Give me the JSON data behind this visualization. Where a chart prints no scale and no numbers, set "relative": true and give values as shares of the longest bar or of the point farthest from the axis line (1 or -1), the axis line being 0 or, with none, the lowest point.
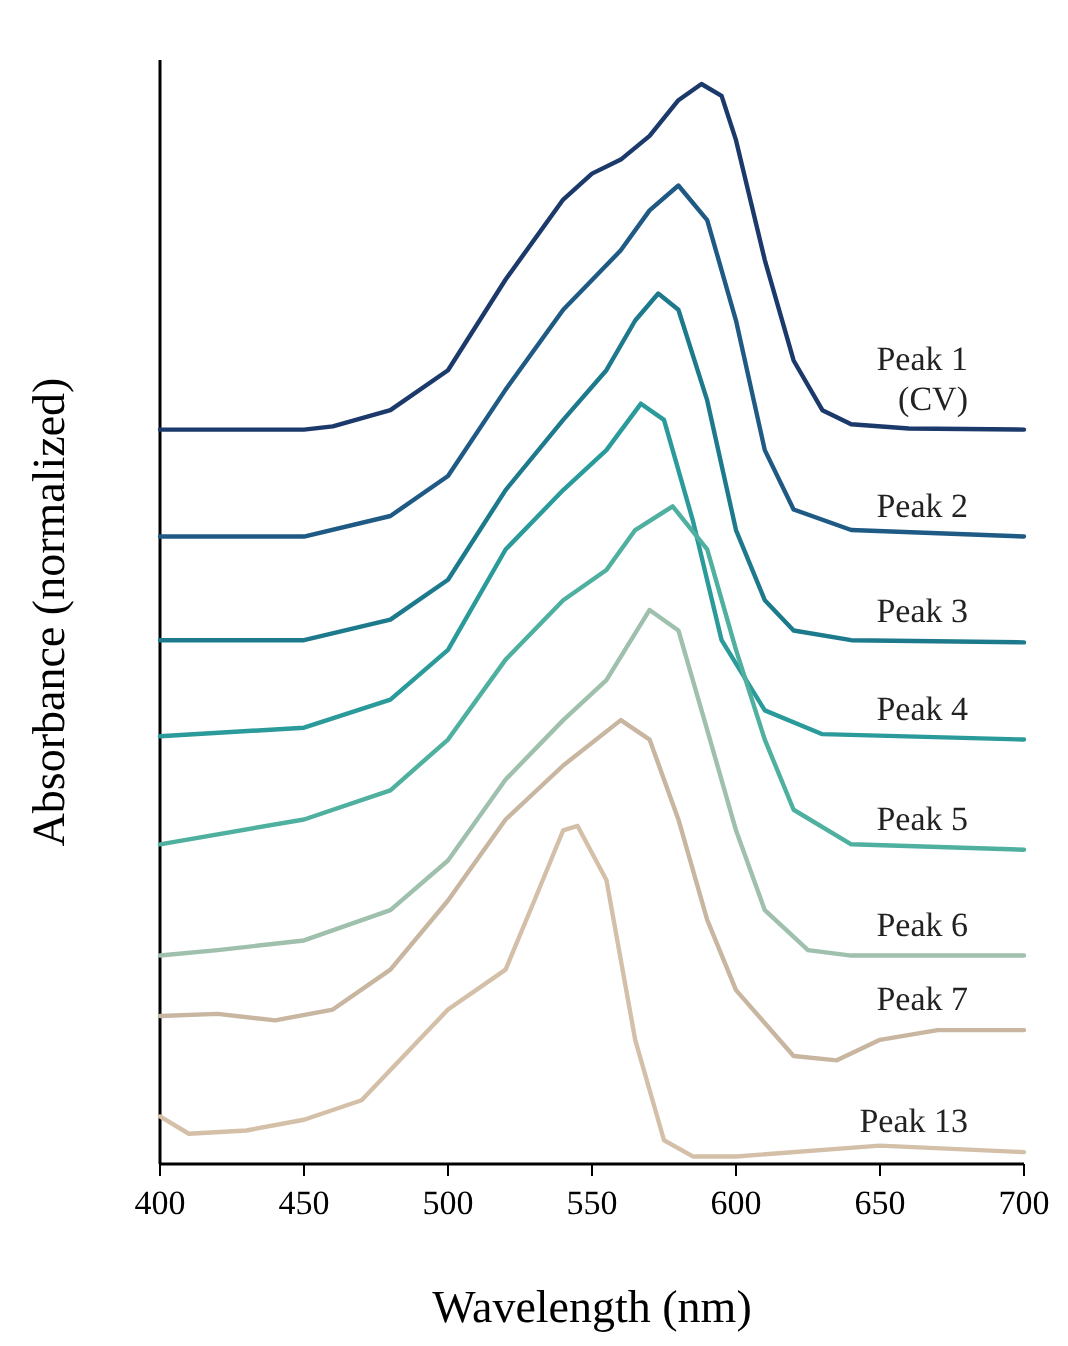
{
  "chart_data": {
    "type": "line",
    "relative": true,
    "xlabel": "Wavelength (nm)",
    "ylabel": "Absorbance (normalized)",
    "xlim": [
      400,
      700
    ],
    "xticks": [
      400,
      450,
      500,
      550,
      600,
      650,
      700
    ],
    "grid": false,
    "marker": "none",
    "line_style": "solid",
    "series": [
      {
        "name": "Peak 1 (CV)",
        "color": "#1b3a6b",
        "x": [
          400,
          450,
          460,
          480,
          500,
          520,
          540,
          550,
          560,
          570,
          580,
          588,
          595,
          600,
          610,
          620,
          630,
          640,
          660,
          700
        ],
        "values": [
          0.68,
          0.68,
          0.683,
          0.698,
          0.735,
          0.819,
          0.893,
          0.917,
          0.93,
          0.952,
          0.985,
          1,
          0.989,
          0.948,
          0.837,
          0.744,
          0.698,
          0.685,
          0.681,
          0.68
        ]
      },
      {
        "name": "Peak 2",
        "color": "#1f5a85",
        "x": [
          400,
          450,
          480,
          500,
          520,
          540,
          560,
          570,
          580,
          590,
          600,
          610,
          620,
          640,
          700
        ],
        "values": [
          0.581,
          0.581,
          0.6,
          0.637,
          0.717,
          0.791,
          0.846,
          0.883,
          0.906,
          0.874,
          0.781,
          0.661,
          0.606,
          0.587,
          0.581
        ]
      },
      {
        "name": "Peak 3",
        "color": "#1d7a8c",
        "x": [
          400,
          450,
          480,
          500,
          520,
          540,
          555,
          565,
          573,
          580,
          590,
          600,
          610,
          620,
          640,
          700
        ],
        "values": [
          0.485,
          0.485,
          0.504,
          0.541,
          0.624,
          0.689,
          0.735,
          0.781,
          0.806,
          0.791,
          0.707,
          0.587,
          0.522,
          0.494,
          0.485,
          0.483
        ]
      },
      {
        "name": "Peak 4",
        "color": "#2a9a9a",
        "x": [
          400,
          450,
          480,
          500,
          520,
          540,
          555,
          567,
          575,
          585,
          595,
          610,
          630,
          700
        ],
        "values": [
          0.396,
          0.404,
          0.43,
          0.476,
          0.569,
          0.624,
          0.661,
          0.704,
          0.689,
          0.596,
          0.485,
          0.42,
          0.398,
          0.393
        ]
      },
      {
        "name": "Peak 5",
        "color": "#4fb0a0",
        "x": [
          400,
          450,
          480,
          500,
          520,
          540,
          555,
          565,
          578,
          590,
          600,
          610,
          620,
          640,
          700
        ],
        "values": [
          0.296,
          0.319,
          0.346,
          0.393,
          0.467,
          0.522,
          0.55,
          0.587,
          0.609,
          0.569,
          0.476,
          0.393,
          0.328,
          0.296,
          0.291
        ]
      },
      {
        "name": "Peak 6",
        "color": "#9fc0ac",
        "x": [
          400,
          420,
          450,
          480,
          500,
          520,
          540,
          555,
          570,
          580,
          590,
          600,
          610,
          625,
          640,
          700
        ],
        "values": [
          0.193,
          0.198,
          0.207,
          0.235,
          0.281,
          0.356,
          0.411,
          0.448,
          0.513,
          0.494,
          0.402,
          0.309,
          0.235,
          0.198,
          0.193,
          0.193
        ]
      },
      {
        "name": "Peak 7",
        "color": "#c8b6a0",
        "x": [
          400,
          420,
          440,
          460,
          480,
          500,
          520,
          540,
          560,
          570,
          580,
          590,
          600,
          620,
          635,
          650,
          670,
          700
        ],
        "values": [
          0.137,
          0.139,
          0.133,
          0.143,
          0.18,
          0.244,
          0.319,
          0.369,
          0.411,
          0.393,
          0.319,
          0.226,
          0.161,
          0.1,
          0.096,
          0.115,
          0.124,
          0.124
        ]
      },
      {
        "name": "Peak 13",
        "color": "#d4c0a8",
        "x": [
          400,
          410,
          430,
          450,
          470,
          490,
          500,
          520,
          530,
          540,
          545,
          555,
          565,
          575,
          585,
          600,
          650,
          700
        ],
        "values": [
          0.044,
          0.028,
          0.031,
          0.041,
          0.059,
          0.115,
          0.143,
          0.18,
          0.244,
          0.309,
          0.313,
          0.263,
          0.115,
          0.022,
          0.007,
          0.007,
          0.017,
          0.011
        ]
      }
    ]
  }
}
